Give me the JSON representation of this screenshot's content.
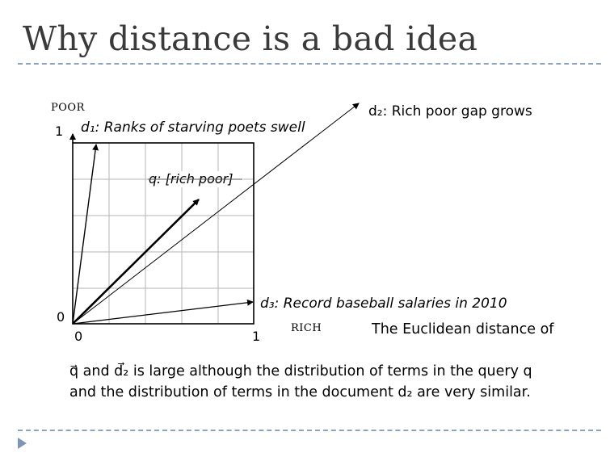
{
  "slide": {
    "title": "Why distance is a bad idea",
    "nav_icon": "triangle-right-icon"
  },
  "plot": {
    "y_axis_label": "POOR",
    "x_axis_label": "RICH",
    "tick_y1": "1",
    "tick_y0": "0",
    "tick_x0": "0",
    "tick_x1": "1",
    "vectors": [
      {
        "id": "d1",
        "label": "d₁: Ranks of starving poets swell"
      },
      {
        "id": "q",
        "label": "q: [rich poor]"
      },
      {
        "id": "d2",
        "label": "d₂: Rich poor gap grows"
      },
      {
        "id": "d3",
        "label": "d₃: Record baseball salaries in 2010"
      }
    ]
  },
  "text": {
    "euclid_line": "The Euclidean distance of",
    "caption_line1": "q⃗ and d⃗₂ is large although the distribution of terms in the query q",
    "caption_line2": "and the distribution of terms in the document d₂ are very similar."
  }
}
